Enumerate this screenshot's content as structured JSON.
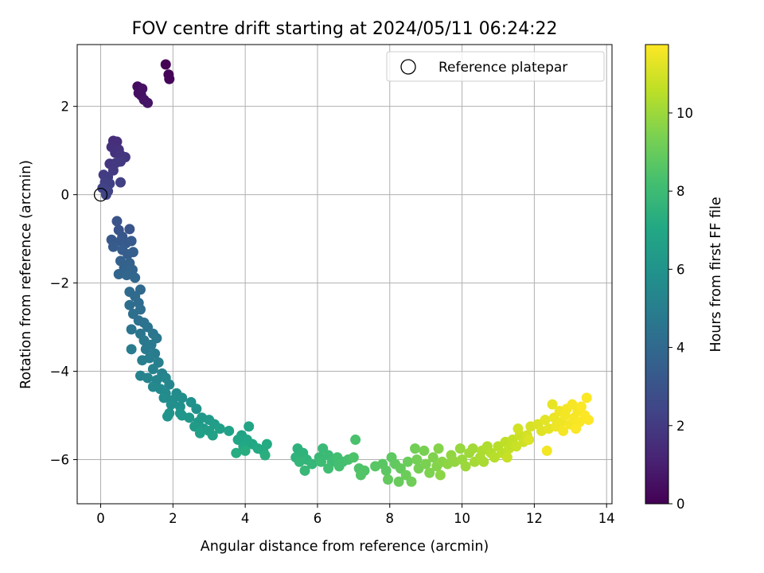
{
  "chart_data": {
    "type": "scatter",
    "title": "FOV centre drift starting at 2024/05/11 06:24:22",
    "xlabel": "Angular distance from reference (arcmin)",
    "ylabel": "Rotation from reference (arcmin)",
    "xlim": [
      -0.65,
      14.15
    ],
    "ylim": [
      -7.0,
      3.4
    ],
    "xticks": [
      0,
      2,
      4,
      6,
      8,
      10,
      12,
      14
    ],
    "yticks": [
      -6,
      -4,
      -2,
      0,
      2
    ],
    "grid": true,
    "legend": {
      "entries": [
        "Reference platepar"
      ],
      "placement": "top-right"
    },
    "reference_point": {
      "x": 0,
      "y": 0
    },
    "colorbar": {
      "label": "Hours from first FF file",
      "range": [
        0,
        11.75
      ],
      "ticks": [
        0,
        2,
        4,
        6,
        8,
        10
      ],
      "colormap": "viridis"
    },
    "points": [
      {
        "x": 1.8,
        "y": 2.95,
        "c": 0.05
      },
      {
        "x": 1.88,
        "y": 2.72,
        "c": 0.1
      },
      {
        "x": 1.9,
        "y": 2.62,
        "c": 0.15
      },
      {
        "x": 1.02,
        "y": 2.45,
        "c": 0.4
      },
      {
        "x": 1.05,
        "y": 2.3,
        "c": 0.45
      },
      {
        "x": 1.12,
        "y": 2.25,
        "c": 0.5
      },
      {
        "x": 1.15,
        "y": 2.4,
        "c": 0.55
      },
      {
        "x": 1.2,
        "y": 2.15,
        "c": 0.6
      },
      {
        "x": 1.3,
        "y": 2.08,
        "c": 0.65
      },
      {
        "x": 0.35,
        "y": 1.22,
        "c": 1.5
      },
      {
        "x": 0.45,
        "y": 1.2,
        "c": 1.55
      },
      {
        "x": 0.3,
        "y": 1.08,
        "c": 1.6
      },
      {
        "x": 0.5,
        "y": 1.02,
        "c": 1.65
      },
      {
        "x": 0.4,
        "y": 0.95,
        "c": 1.7
      },
      {
        "x": 0.55,
        "y": 0.9,
        "c": 1.75
      },
      {
        "x": 0.68,
        "y": 0.85,
        "c": 1.8
      },
      {
        "x": 0.25,
        "y": 0.7,
        "c": 1.85
      },
      {
        "x": 0.42,
        "y": 0.72,
        "c": 1.9
      },
      {
        "x": 0.55,
        "y": 0.75,
        "c": 1.95
      },
      {
        "x": 0.35,
        "y": 0.55,
        "c": 2.0
      },
      {
        "x": 0.08,
        "y": 0.45,
        "c": 2.05
      },
      {
        "x": 0.2,
        "y": 0.4,
        "c": 2.1
      },
      {
        "x": 0.12,
        "y": 0.28,
        "c": 2.15
      },
      {
        "x": 0.25,
        "y": 0.25,
        "c": 2.2
      },
      {
        "x": 0.55,
        "y": 0.28,
        "c": 2.25
      },
      {
        "x": 0.05,
        "y": 0.15,
        "c": 2.3
      },
      {
        "x": 0.2,
        "y": 0.08,
        "c": 2.35
      },
      {
        "x": 0.15,
        "y": 0.0,
        "c": 2.4
      },
      {
        "x": 0.45,
        "y": -0.6,
        "c": 3.0
      },
      {
        "x": 0.5,
        "y": -0.8,
        "c": 3.05
      },
      {
        "x": 0.8,
        "y": -0.78,
        "c": 3.1
      },
      {
        "x": 0.6,
        "y": -0.95,
        "c": 3.15
      },
      {
        "x": 0.3,
        "y": -1.02,
        "c": 3.2
      },
      {
        "x": 0.55,
        "y": -1.05,
        "c": 3.25
      },
      {
        "x": 0.7,
        "y": -1.1,
        "c": 3.3
      },
      {
        "x": 0.85,
        "y": -1.05,
        "c": 3.35
      },
      {
        "x": 0.35,
        "y": -1.18,
        "c": 3.4
      },
      {
        "x": 0.6,
        "y": -1.25,
        "c": 3.45
      },
      {
        "x": 0.75,
        "y": -1.35,
        "c": 3.5
      },
      {
        "x": 0.9,
        "y": -1.3,
        "c": 3.55
      },
      {
        "x": 0.55,
        "y": -1.5,
        "c": 3.6
      },
      {
        "x": 0.8,
        "y": -1.55,
        "c": 3.65
      },
      {
        "x": 0.65,
        "y": -1.65,
        "c": 3.7
      },
      {
        "x": 0.88,
        "y": -1.7,
        "c": 3.75
      },
      {
        "x": 0.5,
        "y": -1.8,
        "c": 3.8
      },
      {
        "x": 0.72,
        "y": -1.82,
        "c": 3.85
      },
      {
        "x": 0.95,
        "y": -1.88,
        "c": 3.9
      },
      {
        "x": 1.1,
        "y": -2.15,
        "c": 4.0
      },
      {
        "x": 0.8,
        "y": -2.2,
        "c": 4.05
      },
      {
        "x": 0.95,
        "y": -2.3,
        "c": 4.1
      },
      {
        "x": 1.05,
        "y": -2.45,
        "c": 4.15
      },
      {
        "x": 0.8,
        "y": -2.5,
        "c": 4.2
      },
      {
        "x": 1.1,
        "y": -2.6,
        "c": 4.25
      },
      {
        "x": 0.9,
        "y": -2.7,
        "c": 4.3
      },
      {
        "x": 1.05,
        "y": -2.85,
        "c": 4.35
      },
      {
        "x": 1.2,
        "y": -2.9,
        "c": 4.4
      },
      {
        "x": 1.3,
        "y": -3.0,
        "c": 4.45
      },
      {
        "x": 0.85,
        "y": -3.05,
        "c": 4.5
      },
      {
        "x": 1.1,
        "y": -3.15,
        "c": 4.55
      },
      {
        "x": 1.45,
        "y": -3.15,
        "c": 4.6
      },
      {
        "x": 1.55,
        "y": -3.25,
        "c": 4.65
      },
      {
        "x": 1.2,
        "y": -3.3,
        "c": 4.7
      },
      {
        "x": 1.4,
        "y": -3.4,
        "c": 4.75
      },
      {
        "x": 1.25,
        "y": -3.5,
        "c": 4.8
      },
      {
        "x": 0.85,
        "y": -3.5,
        "c": 4.85
      },
      {
        "x": 1.5,
        "y": -3.6,
        "c": 4.9
      },
      {
        "x": 1.35,
        "y": -3.7,
        "c": 4.95
      },
      {
        "x": 1.15,
        "y": -3.75,
        "c": 5.0
      },
      {
        "x": 1.6,
        "y": -3.8,
        "c": 5.05
      },
      {
        "x": 1.45,
        "y": -3.95,
        "c": 5.1
      },
      {
        "x": 1.7,
        "y": -4.05,
        "c": 5.15
      },
      {
        "x": 1.1,
        "y": -4.1,
        "c": 5.2
      },
      {
        "x": 1.3,
        "y": -4.15,
        "c": 5.25
      },
      {
        "x": 1.55,
        "y": -4.2,
        "c": 5.3
      },
      {
        "x": 1.8,
        "y": -4.15,
        "c": 5.35
      },
      {
        "x": 1.9,
        "y": -4.3,
        "c": 5.4
      },
      {
        "x": 1.45,
        "y": -4.35,
        "c": 5.45
      },
      {
        "x": 1.65,
        "y": -4.4,
        "c": 5.5
      },
      {
        "x": 1.8,
        "y": -4.5,
        "c": 5.55
      },
      {
        "x": 2.1,
        "y": -4.5,
        "c": 5.6
      },
      {
        "x": 1.75,
        "y": -4.6,
        "c": 5.65
      },
      {
        "x": 2.0,
        "y": -4.65,
        "c": 5.7
      },
      {
        "x": 2.25,
        "y": -4.6,
        "c": 5.75
      },
      {
        "x": 1.95,
        "y": -4.75,
        "c": 5.8
      },
      {
        "x": 2.2,
        "y": -4.8,
        "c": 5.85
      },
      {
        "x": 2.5,
        "y": -4.7,
        "c": 5.9
      },
      {
        "x": 2.65,
        "y": -4.85,
        "c": 5.95
      },
      {
        "x": 1.9,
        "y": -4.95,
        "c": 6.0
      },
      {
        "x": 1.85,
        "y": -5.02,
        "c": 6.05
      },
      {
        "x": 2.2,
        "y": -4.95,
        "c": 6.1
      },
      {
        "x": 2.25,
        "y": -5.0,
        "c": 6.15
      },
      {
        "x": 2.45,
        "y": -5.05,
        "c": 6.2
      },
      {
        "x": 2.8,
        "y": -5.05,
        "c": 6.25
      },
      {
        "x": 2.7,
        "y": -5.15,
        "c": 6.3
      },
      {
        "x": 3.0,
        "y": -5.1,
        "c": 6.35
      },
      {
        "x": 2.6,
        "y": -5.25,
        "c": 6.4
      },
      {
        "x": 2.85,
        "y": -5.3,
        "c": 6.45
      },
      {
        "x": 3.15,
        "y": -5.2,
        "c": 6.5
      },
      {
        "x": 3.0,
        "y": -5.35,
        "c": 6.55
      },
      {
        "x": 3.3,
        "y": -5.3,
        "c": 6.6
      },
      {
        "x": 2.75,
        "y": -5.4,
        "c": 6.65
      },
      {
        "x": 3.1,
        "y": -5.45,
        "c": 6.7
      },
      {
        "x": 3.55,
        "y": -5.35,
        "c": 6.75
      },
      {
        "x": 3.9,
        "y": -5.45,
        "c": 6.8
      },
      {
        "x": 4.1,
        "y": -5.25,
        "c": 6.85
      },
      {
        "x": 3.8,
        "y": -5.55,
        "c": 6.9
      },
      {
        "x": 4.05,
        "y": -5.55,
        "c": 6.95
      },
      {
        "x": 4.2,
        "y": -5.65,
        "c": 7.0
      },
      {
        "x": 3.95,
        "y": -5.7,
        "c": 7.05
      },
      {
        "x": 4.35,
        "y": -5.75,
        "c": 7.1
      },
      {
        "x": 4.6,
        "y": -5.65,
        "c": 7.15
      },
      {
        "x": 4.5,
        "y": -5.8,
        "c": 7.2
      },
      {
        "x": 3.75,
        "y": -5.85,
        "c": 7.25
      },
      {
        "x": 4.0,
        "y": -5.8,
        "c": 7.3
      },
      {
        "x": 4.55,
        "y": -5.9,
        "c": 7.35
      },
      {
        "x": 5.45,
        "y": -5.75,
        "c": 7.5
      },
      {
        "x": 5.6,
        "y": -5.85,
        "c": 7.55
      },
      {
        "x": 5.4,
        "y": -5.95,
        "c": 7.6
      },
      {
        "x": 5.7,
        "y": -6.0,
        "c": 7.65
      },
      {
        "x": 5.5,
        "y": -6.05,
        "c": 7.7
      },
      {
        "x": 5.85,
        "y": -6.1,
        "c": 7.75
      },
      {
        "x": 5.65,
        "y": -6.25,
        "c": 7.8
      },
      {
        "x": 6.05,
        "y": -5.95,
        "c": 7.85
      },
      {
        "x": 6.15,
        "y": -5.75,
        "c": 7.9
      },
      {
        "x": 6.3,
        "y": -5.9,
        "c": 7.95
      },
      {
        "x": 6.1,
        "y": -6.05,
        "c": 8.0
      },
      {
        "x": 6.4,
        "y": -6.05,
        "c": 8.05
      },
      {
        "x": 6.3,
        "y": -6.2,
        "c": 8.1
      },
      {
        "x": 6.55,
        "y": -5.95,
        "c": 8.15
      },
      {
        "x": 6.7,
        "y": -6.05,
        "c": 8.2
      },
      {
        "x": 6.6,
        "y": -6.15,
        "c": 8.25
      },
      {
        "x": 6.85,
        "y": -6.0,
        "c": 8.3
      },
      {
        "x": 7.05,
        "y": -5.55,
        "c": 8.35
      },
      {
        "x": 7.0,
        "y": -5.95,
        "c": 8.4
      },
      {
        "x": 7.15,
        "y": -6.2,
        "c": 8.45
      },
      {
        "x": 7.3,
        "y": -6.25,
        "c": 8.5
      },
      {
        "x": 7.2,
        "y": -6.35,
        "c": 8.55
      },
      {
        "x": 7.6,
        "y": -6.15,
        "c": 8.65
      },
      {
        "x": 7.8,
        "y": -6.1,
        "c": 8.7
      },
      {
        "x": 7.9,
        "y": -6.25,
        "c": 8.75
      },
      {
        "x": 8.05,
        "y": -5.95,
        "c": 8.8
      },
      {
        "x": 8.15,
        "y": -6.1,
        "c": 8.85
      },
      {
        "x": 7.95,
        "y": -6.45,
        "c": 8.9
      },
      {
        "x": 8.3,
        "y": -6.2,
        "c": 8.95
      },
      {
        "x": 8.25,
        "y": -6.5,
        "c": 9.0
      },
      {
        "x": 8.5,
        "y": -6.05,
        "c": 9.05
      },
      {
        "x": 8.45,
        "y": -6.35,
        "c": 9.1
      },
      {
        "x": 8.6,
        "y": -6.5,
        "c": 9.15
      },
      {
        "x": 8.7,
        "y": -5.75,
        "c": 9.2
      },
      {
        "x": 8.75,
        "y": -6.0,
        "c": 9.25
      },
      {
        "x": 8.8,
        "y": -6.2,
        "c": 9.3
      },
      {
        "x": 8.95,
        "y": -5.8,
        "c": 9.35
      },
      {
        "x": 9.0,
        "y": -6.1,
        "c": 9.4
      },
      {
        "x": 9.1,
        "y": -6.3,
        "c": 9.45
      },
      {
        "x": 9.2,
        "y": -5.95,
        "c": 9.5
      },
      {
        "x": 9.3,
        "y": -6.15,
        "c": 9.55
      },
      {
        "x": 9.35,
        "y": -5.75,
        "c": 9.6
      },
      {
        "x": 9.45,
        "y": -6.05,
        "c": 9.65
      },
      {
        "x": 9.4,
        "y": -6.35,
        "c": 9.7
      },
      {
        "x": 9.6,
        "y": -6.1,
        "c": 9.75
      },
      {
        "x": 9.7,
        "y": -5.9,
        "c": 9.8
      },
      {
        "x": 9.8,
        "y": -6.05,
        "c": 9.85
      },
      {
        "x": 9.95,
        "y": -5.75,
        "c": 9.9
      },
      {
        "x": 10.0,
        "y": -6.0,
        "c": 9.95
      },
      {
        "x": 10.1,
        "y": -6.15,
        "c": 10.0
      },
      {
        "x": 10.2,
        "y": -5.85,
        "c": 10.05
      },
      {
        "x": 10.3,
        "y": -5.75,
        "c": 10.1
      },
      {
        "x": 10.35,
        "y": -6.05,
        "c": 10.15
      },
      {
        "x": 10.5,
        "y": -5.95,
        "c": 10.2
      },
      {
        "x": 10.6,
        "y": -6.05,
        "c": 10.25
      },
      {
        "x": 10.55,
        "y": -5.8,
        "c": 10.3
      },
      {
        "x": 10.7,
        "y": -5.7,
        "c": 10.35
      },
      {
        "x": 10.8,
        "y": -5.85,
        "c": 10.4
      },
      {
        "x": 10.9,
        "y": -5.95,
        "c": 10.45
      },
      {
        "x": 11.0,
        "y": -5.7,
        "c": 10.5
      },
      {
        "x": 11.1,
        "y": -5.85,
        "c": 10.55
      },
      {
        "x": 11.2,
        "y": -5.6,
        "c": 10.6
      },
      {
        "x": 11.3,
        "y": -5.75,
        "c": 10.65
      },
      {
        "x": 11.4,
        "y": -5.55,
        "c": 10.7
      },
      {
        "x": 11.25,
        "y": -5.95,
        "c": 10.75
      },
      {
        "x": 11.5,
        "y": -5.7,
        "c": 10.8
      },
      {
        "x": 11.6,
        "y": -5.45,
        "c": 10.85
      },
      {
        "x": 11.7,
        "y": -5.6,
        "c": 10.9
      },
      {
        "x": 11.55,
        "y": -5.3,
        "c": 10.95
      },
      {
        "x": 11.8,
        "y": -5.45,
        "c": 11.0
      },
      {
        "x": 11.9,
        "y": -5.25,
        "c": 11.05
      },
      {
        "x": 11.85,
        "y": -5.55,
        "c": 11.1
      },
      {
        "x": 12.1,
        "y": -5.2,
        "c": 11.15
      },
      {
        "x": 12.2,
        "y": -5.35,
        "c": 11.2
      },
      {
        "x": 12.3,
        "y": -5.1,
        "c": 11.25
      },
      {
        "x": 12.4,
        "y": -5.3,
        "c": 11.3
      },
      {
        "x": 12.5,
        "y": -4.75,
        "c": 11.35
      },
      {
        "x": 12.55,
        "y": -5.05,
        "c": 11.4
      },
      {
        "x": 12.6,
        "y": -5.25,
        "c": 11.45
      },
      {
        "x": 12.7,
        "y": -4.9,
        "c": 11.5
      },
      {
        "x": 12.75,
        "y": -5.15,
        "c": 11.52
      },
      {
        "x": 12.35,
        "y": -5.8,
        "c": 11.54
      },
      {
        "x": 12.85,
        "y": -5.0,
        "c": 11.56
      },
      {
        "x": 12.9,
        "y": -4.85,
        "c": 11.58
      },
      {
        "x": 13.0,
        "y": -5.2,
        "c": 11.6
      },
      {
        "x": 13.05,
        "y": -4.75,
        "c": 11.62
      },
      {
        "x": 13.1,
        "y": -5.05,
        "c": 11.64
      },
      {
        "x": 13.2,
        "y": -4.9,
        "c": 11.66
      },
      {
        "x": 13.25,
        "y": -5.15,
        "c": 11.68
      },
      {
        "x": 13.3,
        "y": -4.8,
        "c": 11.7
      },
      {
        "x": 13.4,
        "y": -5.0,
        "c": 11.72
      },
      {
        "x": 13.45,
        "y": -4.6,
        "c": 11.74
      },
      {
        "x": 13.5,
        "y": -5.1,
        "c": 11.75
      },
      {
        "x": 12.8,
        "y": -5.35,
        "c": 11.6
      },
      {
        "x": 13.15,
        "y": -5.3,
        "c": 11.7
      }
    ]
  }
}
